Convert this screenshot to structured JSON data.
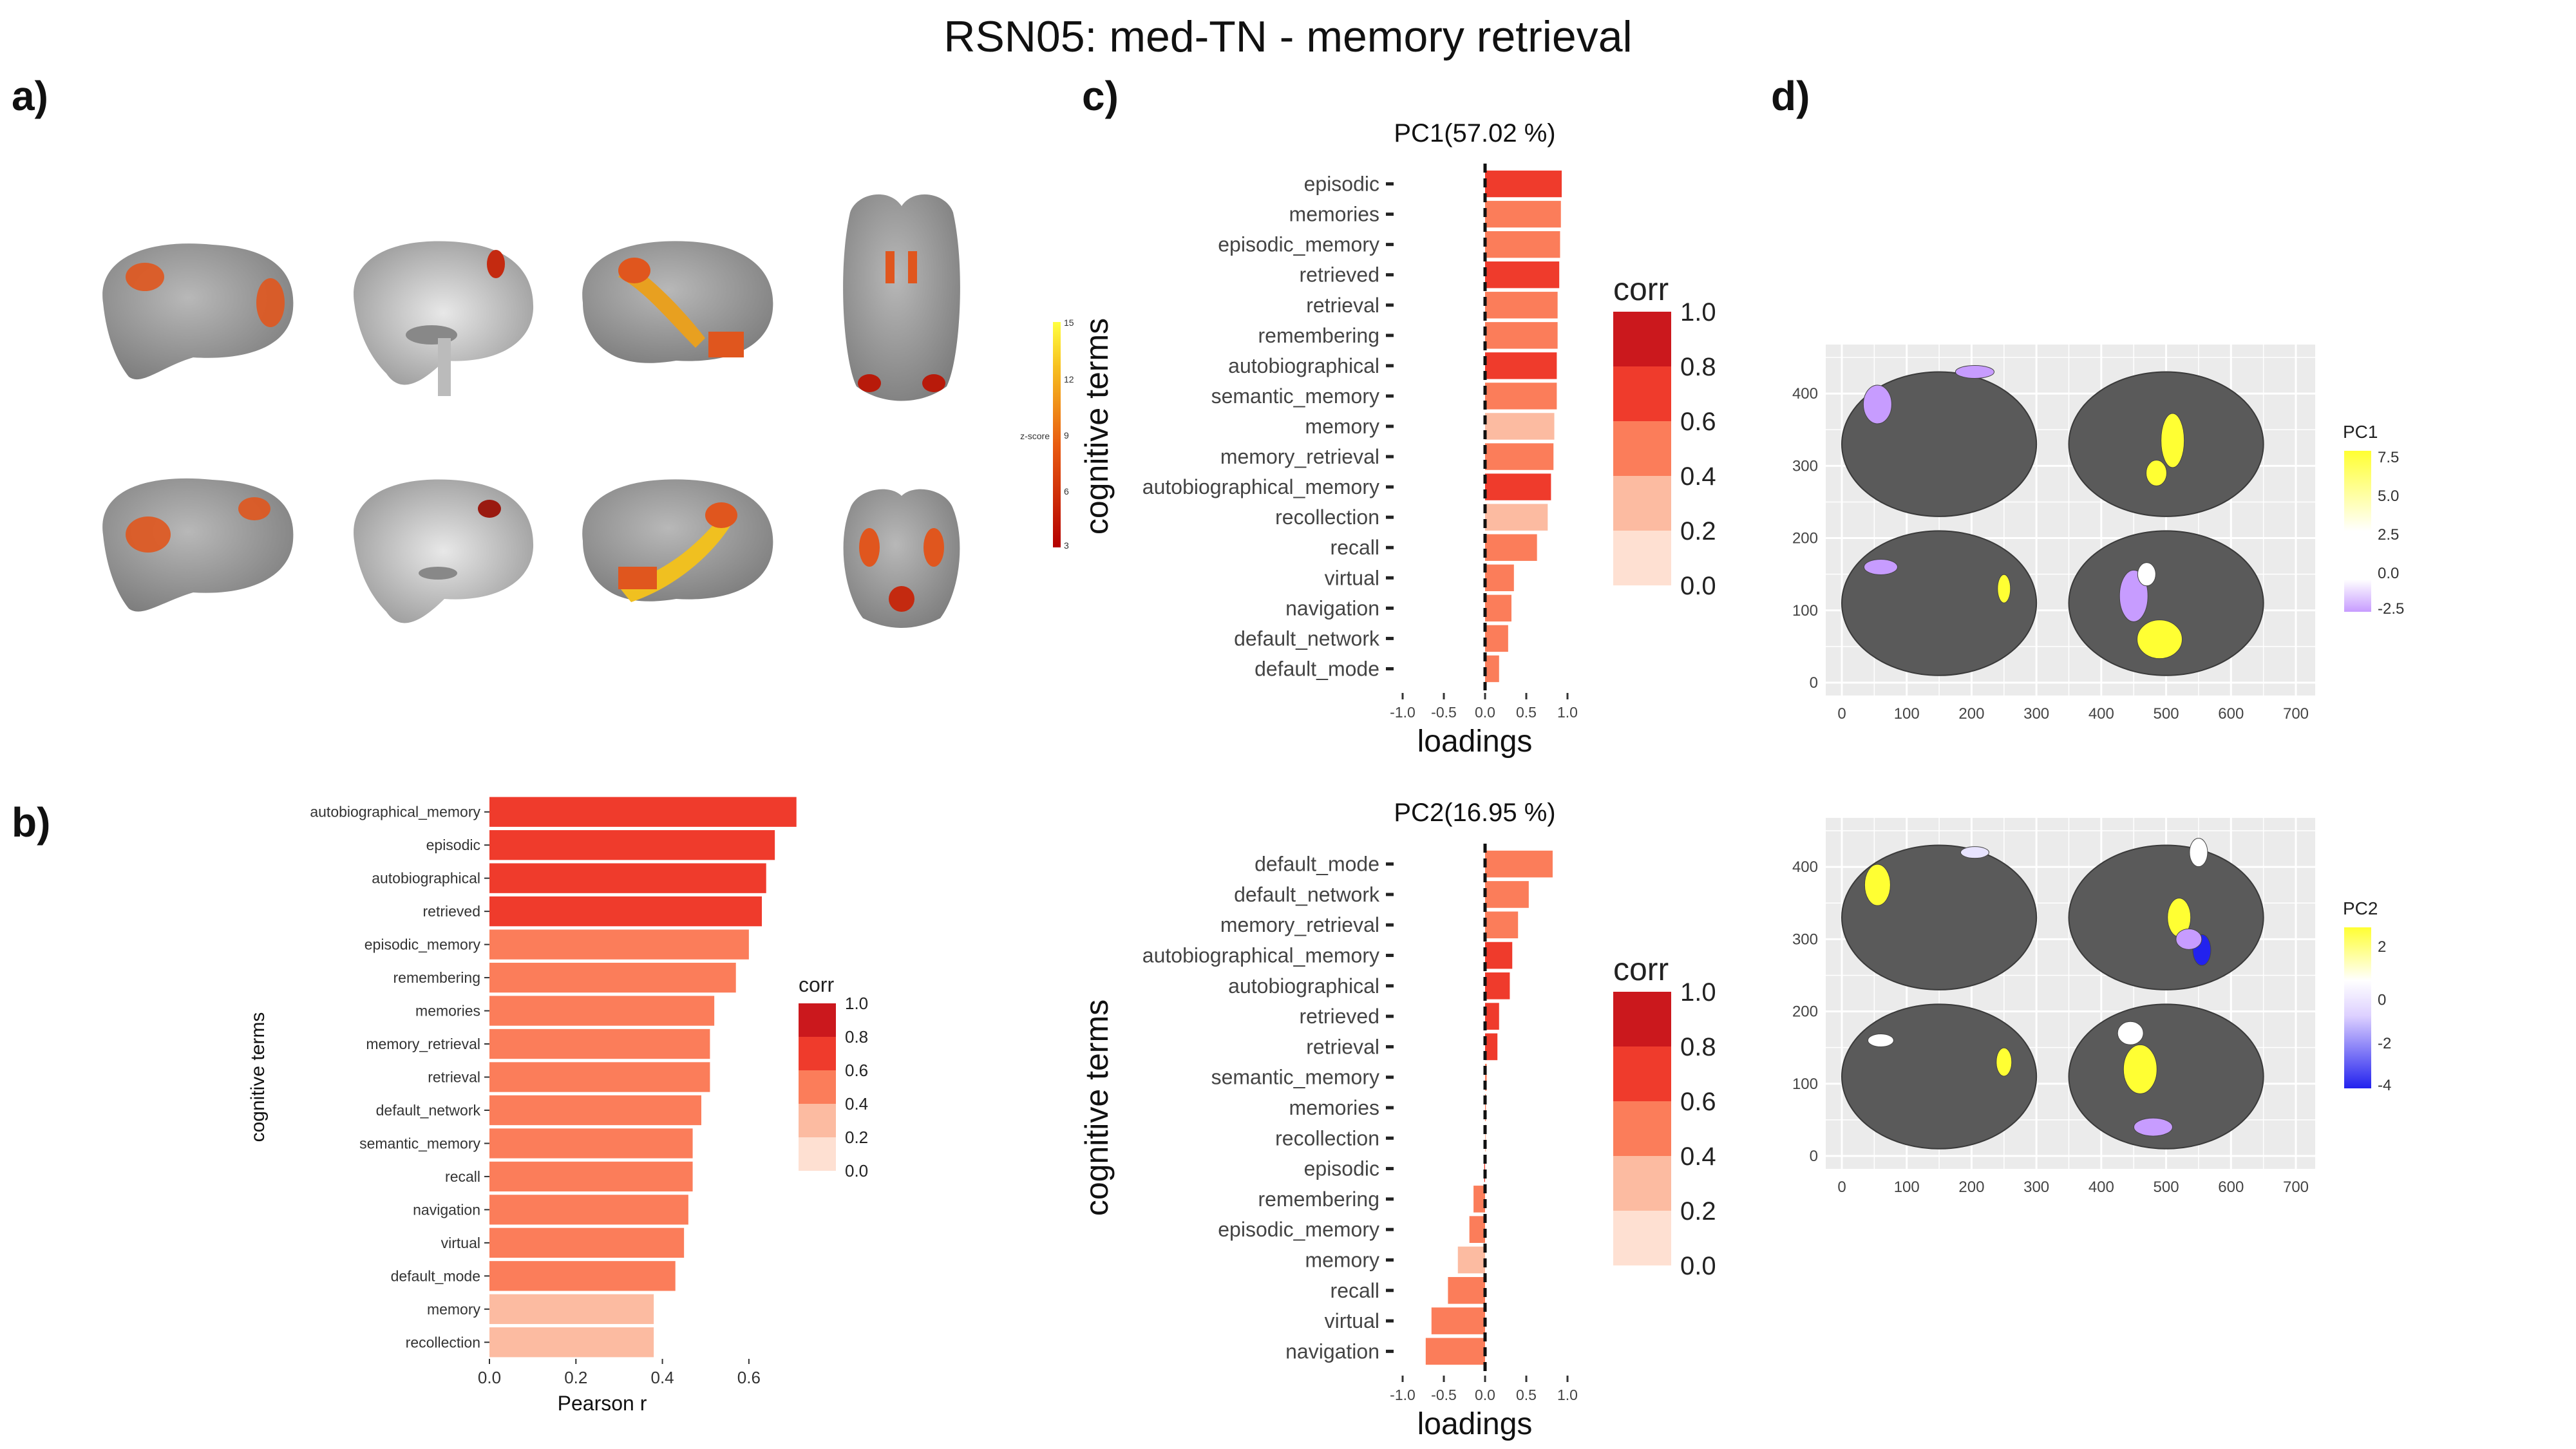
{
  "title": "RSN05: med-TN - memory retrieval",
  "panel_labels": {
    "a": "a)",
    "b": "b)",
    "c": "c)",
    "d": "d)"
  },
  "colors": {
    "corr_scale": [
      "#fee0d2",
      "#fcbba1",
      "#fb6a4a",
      "#ef3b2c",
      "#cb181d"
    ],
    "bar_0_2": "#fee0d2",
    "bar_0_4": "#fcbba1",
    "bar_0_6": "#fb7d5a",
    "bar_0_8": "#ef3b2c",
    "bar_1_0": "#cb181d",
    "brain_gray": "#8e8e8e",
    "panel_bg": "#ebebeb",
    "surface_dark": "#5a5a5a",
    "pc_yellow": "#ffff33",
    "pc_purple": "#c79cff",
    "pc_blue": "#2222ee"
  },
  "panel_a": {
    "colorbar_label": "z-score",
    "colorbar_ticks": [
      "15",
      "12",
      "9",
      "6",
      "3"
    ]
  },
  "chart_data": [
    {
      "id": "b",
      "type": "bar",
      "orientation": "horizontal",
      "xlabel": "Pearson r",
      "ylabel": "cognitive terms",
      "xlim": [
        0,
        0.7
      ],
      "xticks": [
        "0.0",
        "0.2",
        "0.4",
        "0.6"
      ],
      "legend": {
        "title": "corr",
        "labels": [
          "1.0",
          "0.8",
          "0.6",
          "0.4",
          "0.2",
          "0.0"
        ],
        "position": "right"
      },
      "categories": [
        "autobiographical_memory",
        "episodic",
        "autobiographical",
        "retrieved",
        "episodic_memory",
        "remembering",
        "memories",
        "memory_retrieval",
        "retrieval",
        "default_network",
        "semantic_memory",
        "recall",
        "navigation",
        "virtual",
        "default_mode",
        "memory",
        "recollection"
      ],
      "values": [
        0.71,
        0.66,
        0.64,
        0.63,
        0.6,
        0.57,
        0.52,
        0.51,
        0.51,
        0.49,
        0.47,
        0.47,
        0.46,
        0.45,
        0.43,
        0.38,
        0.38
      ],
      "corr": [
        0.7,
        0.7,
        0.7,
        0.7,
        0.5,
        0.5,
        0.5,
        0.5,
        0.5,
        0.5,
        0.5,
        0.5,
        0.5,
        0.5,
        0.5,
        0.3,
        0.3
      ]
    },
    {
      "id": "c1",
      "type": "bar",
      "orientation": "horizontal",
      "title": "PC1(57.02 %)",
      "xlabel": "loadings",
      "ylabel": "cognitive terms",
      "xlim": [
        -1.0,
        1.0
      ],
      "xticks": [
        "-1.0",
        "-0.5",
        "0.0",
        "0.5",
        "1.0"
      ],
      "legend": {
        "title": "corr",
        "labels": [
          "1.0",
          "0.8",
          "0.6",
          "0.4",
          "0.2",
          "0.0"
        ],
        "position": "right"
      },
      "categories": [
        "episodic",
        "memories",
        "episodic_memory",
        "retrieved",
        "retrieval",
        "remembering",
        "autobiographical",
        "semantic_memory",
        "memory",
        "memory_retrieval",
        "autobiographical_memory",
        "recollection",
        "recall",
        "virtual",
        "navigation",
        "default_network",
        "default_mode"
      ],
      "values": [
        0.93,
        0.92,
        0.91,
        0.9,
        0.88,
        0.88,
        0.87,
        0.87,
        0.84,
        0.83,
        0.8,
        0.76,
        0.63,
        0.35,
        0.32,
        0.28,
        0.17
      ],
      "corr": [
        0.7,
        0.5,
        0.5,
        0.7,
        0.5,
        0.5,
        0.7,
        0.5,
        0.3,
        0.5,
        0.7,
        0.3,
        0.5,
        0.5,
        0.5,
        0.5,
        0.5
      ]
    },
    {
      "id": "c2",
      "type": "bar",
      "orientation": "horizontal",
      "title": "PC2(16.95 %)",
      "xlabel": "loadings",
      "ylabel": "cognitive terms",
      "xlim": [
        -1.0,
        1.0
      ],
      "xticks": [
        "-1.0",
        "-0.5",
        "0.0",
        "0.5",
        "1.0"
      ],
      "legend": {
        "title": "corr",
        "labels": [
          "1.0",
          "0.8",
          "0.6",
          "0.4",
          "0.2",
          "0.0"
        ],
        "position": "right"
      },
      "categories": [
        "default_mode",
        "default_network",
        "memory_retrieval",
        "autobiographical_memory",
        "autobiographical",
        "retrieved",
        "retrieval",
        "semantic_memory",
        "memories",
        "recollection",
        "episodic",
        "remembering",
        "episodic_memory",
        "memory",
        "recall",
        "virtual",
        "navigation"
      ],
      "values": [
        0.82,
        0.53,
        0.4,
        0.33,
        0.3,
        0.17,
        0.15,
        0.02,
        0.01,
        0.01,
        -0.01,
        -0.14,
        -0.19,
        -0.33,
        -0.45,
        -0.65,
        -0.72
      ],
      "corr": [
        0.5,
        0.5,
        0.5,
        0.7,
        0.7,
        0.7,
        0.7,
        0.5,
        0.5,
        0.3,
        0.7,
        0.5,
        0.5,
        0.3,
        0.5,
        0.5,
        0.5
      ]
    },
    {
      "id": "d1",
      "type": "heatmap",
      "subtype": "cortical surface map",
      "xlim": [
        0,
        700
      ],
      "ylim": [
        0,
        450
      ],
      "xticks": [
        "0",
        "100",
        "200",
        "300",
        "400",
        "500",
        "600",
        "700"
      ],
      "yticks": [
        "0",
        "100",
        "200",
        "300",
        "400"
      ],
      "legend": {
        "title": "PC1",
        "labels": [
          "7.5",
          "5.0",
          "2.5",
          "0.0",
          "-2.5"
        ],
        "position": "right"
      }
    },
    {
      "id": "d2",
      "type": "heatmap",
      "subtype": "cortical surface map",
      "xlim": [
        0,
        700
      ],
      "ylim": [
        0,
        450
      ],
      "xticks": [
        "0",
        "100",
        "200",
        "300",
        "400",
        "500",
        "600",
        "700"
      ],
      "yticks": [
        "0",
        "100",
        "200",
        "300",
        "400"
      ],
      "legend": {
        "title": "PC2",
        "labels": [
          "2",
          "0",
          "-2",
          "-4"
        ],
        "position": "right"
      }
    }
  ]
}
